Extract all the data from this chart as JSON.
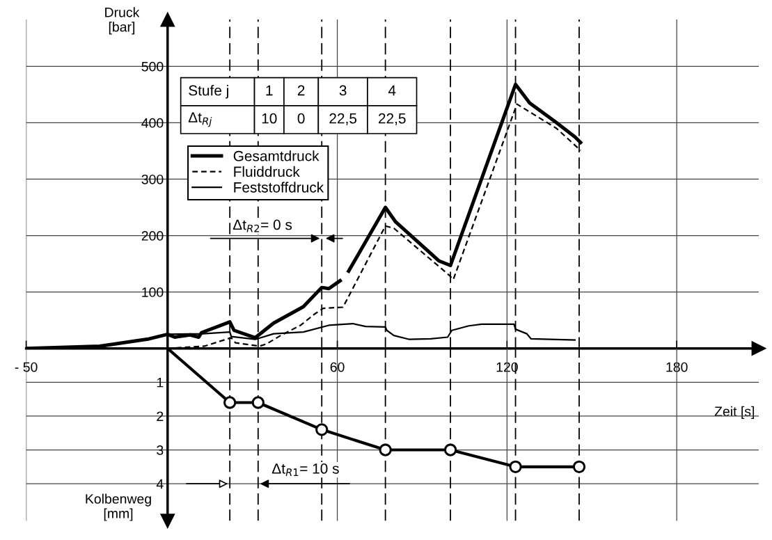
{
  "chart_data": [
    {
      "type": "line",
      "xlabel": "Zeit [s]",
      "ylabel": "Druck\n[bar]",
      "xlim": [
        -50,
        209
      ],
      "xticks": [
        {
          "value": -50,
          "label": "- 50"
        },
        60,
        120,
        180
      ],
      "ylim": [
        0,
        583
      ],
      "yticks": [
        100,
        200,
        300,
        400,
        500
      ],
      "grid": true,
      "legend": "top left",
      "series": [
        {
          "name": "Gesamtdruck",
          "color": "#000000",
          "line_style": "solid",
          "x": [
            -50,
            -24,
            -6.5,
            0,
            2.5,
            8,
            11,
            12,
            22,
            23.5,
            31,
            37.5,
            48,
            54.5,
            57,
            61,
            62.5,
            64,
            77,
            80.5,
            96,
            100,
            123,
            128,
            137,
            144,
            146
          ],
          "values": [
            0,
            4,
            17,
            25,
            20,
            24,
            20,
            28,
            47,
            32,
            19,
            45,
            74,
            108,
            106,
            120,
            null,
            137,
            250,
            225,
            155,
            147,
            468,
            435,
            402,
            375,
            365
          ]
        },
        {
          "name": "Fluiddruck",
          "color": "#000000",
          "line_style": "dashed",
          "x": [
            -50,
            0,
            13,
            22.5,
            24,
            32.5,
            35,
            40,
            47,
            52,
            55,
            62,
            77,
            80,
            99.5,
            101,
            123.5,
            137.5,
            146
          ],
          "values": [
            0,
            0,
            4,
            19,
            10,
            4,
            8,
            23,
            41,
            61,
            71,
            73,
            217,
            213,
            130,
            122,
            433,
            390,
            351
          ]
        },
        {
          "name": "Feststoffdruck",
          "color": "#000000",
          "line_style": "solid",
          "x": [
            -50,
            -24,
            -6.5,
            0,
            12.5,
            22,
            22.5,
            31,
            37.5,
            48,
            57,
            65.5,
            70,
            77,
            77.5,
            80,
            85.5,
            93,
            99,
            100.5,
            106.5,
            111,
            122.5,
            123,
            127,
            128.5,
            144
          ],
          "values": [
            0,
            4,
            17,
            25,
            26,
            29,
            21,
            16,
            26,
            29,
            41,
            44,
            39,
            38,
            32,
            23,
            16,
            17,
            20,
            32,
            40,
            43,
            43,
            34,
            26,
            17,
            15
          ]
        }
      ],
      "ref_lines": [
        {
          "axis": "x",
          "value": 22,
          "color": "#000000",
          "line_style": "dashed"
        },
        {
          "axis": "x",
          "value": 32,
          "color": "#000000",
          "line_style": "dashed"
        },
        {
          "axis": "x",
          "value": 54.5,
          "color": "#000000",
          "line_style": "dashed"
        },
        {
          "axis": "x",
          "value": 77,
          "color": "#000000",
          "line_style": "dashed"
        },
        {
          "axis": "x",
          "value": 100,
          "color": "#000000",
          "line_style": "dashed"
        },
        {
          "axis": "x",
          "value": 123,
          "color": "#000000",
          "line_style": "dashed"
        },
        {
          "axis": "x",
          "value": 145.5,
          "color": "#000000",
          "line_style": "dashed"
        }
      ],
      "annotations": [
        "Stufe j",
        "1",
        "2",
        "3",
        "4",
        "Δt$_{Rj}$",
        "10",
        "0",
        "22,5",
        "22,5",
        "Δt$_{R2}$= 0 s"
      ]
    },
    {
      "type": "line",
      "ylabel": "Kolbenweg\n[mm]",
      "xlim": [
        -50,
        209
      ],
      "xticks": [
        -50,
        60,
        120,
        180
      ],
      "ylim": [
        5.1,
        0
      ],
      "yticks": [
        1,
        2,
        3,
        4
      ],
      "grid": true,
      "tick_labels": "y",
      "marker": "circle",
      "series": [
        {
          "color": "#000000",
          "line_style": "solid",
          "x": [
            0,
            22,
            32,
            54.5,
            77,
            100,
            123,
            145.5
          ],
          "values": [
            0,
            1.6,
            1.6,
            2.4,
            3.0,
            3.0,
            3.5,
            3.5
          ]
        }
      ],
      "ref_lines": [
        {
          "axis": "x",
          "value": 22,
          "color": "#000000",
          "line_style": "dashed"
        },
        {
          "axis": "x",
          "value": 32,
          "color": "#000000",
          "line_style": "dashed"
        },
        {
          "axis": "x",
          "value": 54.5,
          "color": "#000000",
          "line_style": "dashed"
        },
        {
          "axis": "x",
          "value": 77,
          "color": "#000000",
          "line_style": "dashed"
        },
        {
          "axis": "x",
          "value": 100,
          "color": "#000000",
          "line_style": "dashed"
        },
        {
          "axis": "x",
          "value": 123,
          "color": "#000000",
          "line_style": "dashed"
        },
        {
          "axis": "x",
          "value": 145.5,
          "color": "#000000",
          "line_style": "dashed"
        }
      ],
      "annotations": [
        "Δt$_{R1}$= 10 s"
      ]
    }
  ]
}
